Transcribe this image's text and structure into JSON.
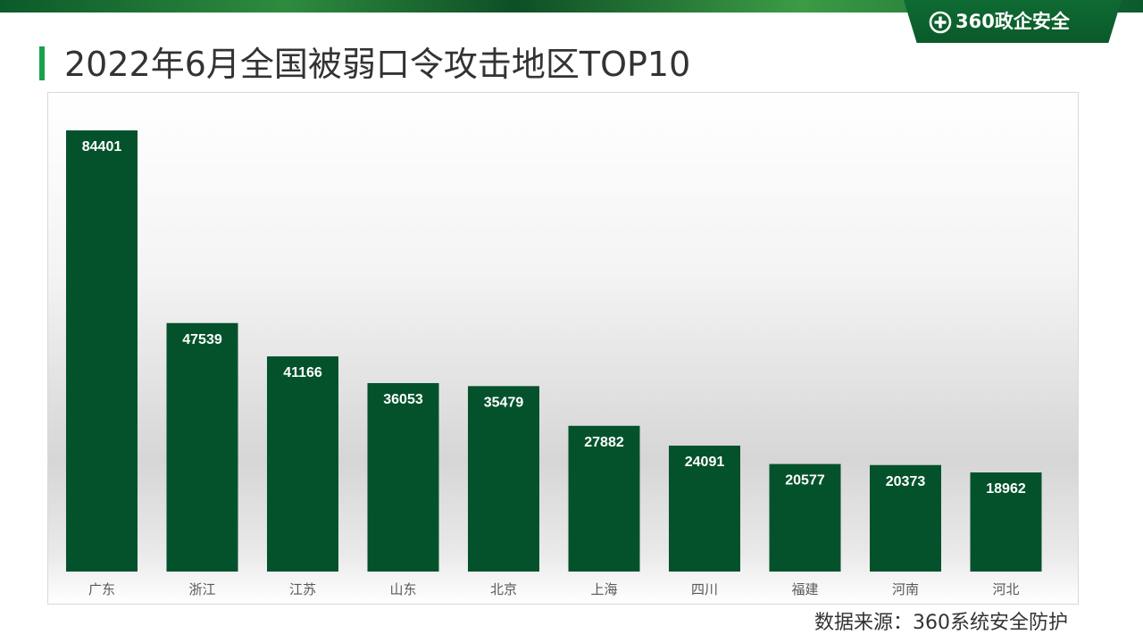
{
  "header": {
    "brand_text": "360政企安全",
    "brand_color": "#0b5a2c",
    "accent_color": "#19a14a"
  },
  "page": {
    "title": "2022年6月全国被弱口令攻击地区TOP10",
    "source": "数据来源：360系统安全防护"
  },
  "chart_data": {
    "type": "bar",
    "categories": [
      "广东",
      "浙江",
      "江苏",
      "山东",
      "北京",
      "上海",
      "四川",
      "福建",
      "河南",
      "河北"
    ],
    "values": [
      84401,
      47539,
      41166,
      36053,
      35479,
      27882,
      24091,
      20577,
      20373,
      18962
    ],
    "data_labels": [
      "84401",
      "47539",
      "41166",
      "36053",
      "35479",
      "27882",
      "24091",
      "20577",
      "20373",
      "18962"
    ],
    "title": "",
    "xlabel": "",
    "ylabel": "",
    "bar_color": "#04522b",
    "grid": false,
    "legend": "none"
  }
}
